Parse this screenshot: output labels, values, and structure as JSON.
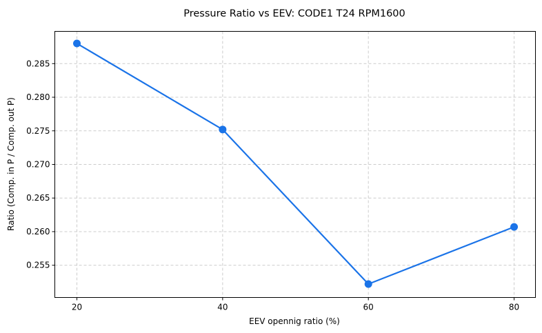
{
  "chart_data": {
    "type": "line",
    "title": "Pressure Ratio vs EEV: CODE1 T24 RPM1600",
    "xlabel": "EEV opennig ratio (%)",
    "ylabel": "Ratio (Comp. in P / Comp. out P)",
    "x": [
      20,
      40,
      60,
      80
    ],
    "series": [
      {
        "name": "Pressure Ratio",
        "values": [
          0.288,
          0.2752,
          0.2522,
          0.2607
        ],
        "color": "#1a73e8"
      }
    ],
    "xticks": [
      20,
      40,
      60,
      80
    ],
    "xtick_labels": [
      "20",
      "40",
      "60",
      "80"
    ],
    "yticks": [
      0.255,
      0.26,
      0.265,
      0.27,
      0.275,
      0.28,
      0.285
    ],
    "ytick_labels": [
      "0.255",
      "0.260",
      "0.265",
      "0.270",
      "0.275",
      "0.280",
      "0.285"
    ],
    "xlim": [
      16.97,
      82.93
    ],
    "ylim": [
      0.2502,
      0.2898
    ],
    "grid": true,
    "grid_style": "dashed"
  }
}
